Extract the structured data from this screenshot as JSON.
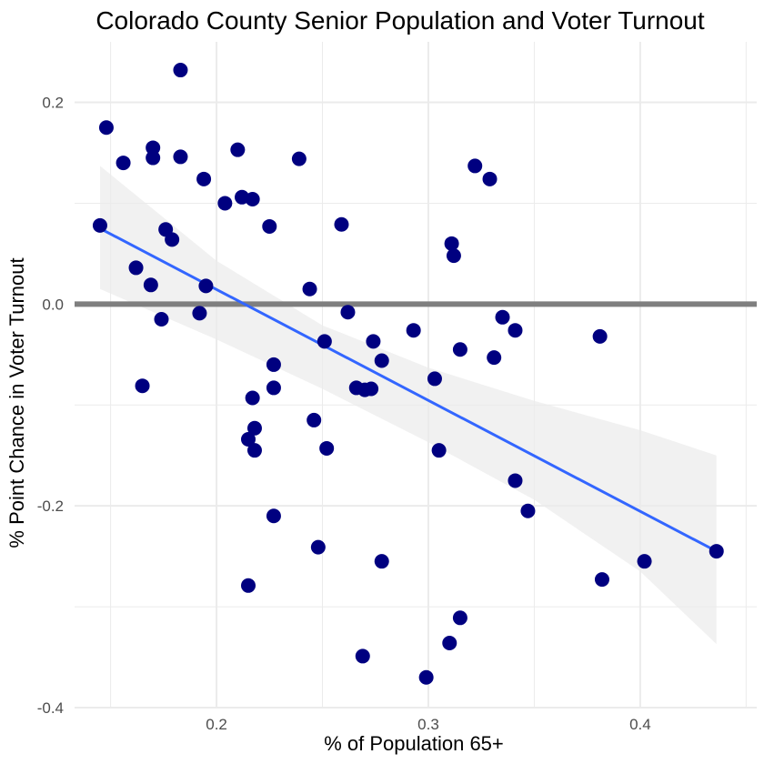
{
  "chart_data": {
    "type": "scatter",
    "title": "Colorado County Senior Population and Voter Turnout",
    "xlabel": "% of Population 65+",
    "ylabel": "% Point Chance in  Voter Turnout",
    "xlim": [
      0.133,
      0.455
    ],
    "ylim": [
      -0.4,
      0.26
    ],
    "x_ticks": [
      0.2,
      0.3,
      0.4
    ],
    "x_tick_labels": [
      "0.2",
      "0.3",
      "0.4"
    ],
    "y_ticks": [
      -0.4,
      -0.2,
      0.0,
      0.2
    ],
    "y_tick_labels": [
      "-0.4",
      "-0.2",
      "0.0",
      "0.2"
    ],
    "grid": true,
    "reference_line_y": 0.0,
    "colors": {
      "points": "#000080",
      "fit_line": "#3366ff",
      "confidence_band": "#ebebeb",
      "reference_line": "#7f7f7f",
      "grid": "#ebebeb"
    },
    "points": [
      {
        "x": 0.183,
        "y": 0.232
      },
      {
        "x": 0.148,
        "y": 0.175
      },
      {
        "x": 0.156,
        "y": 0.14
      },
      {
        "x": 0.17,
        "y": 0.155
      },
      {
        "x": 0.17,
        "y": 0.145
      },
      {
        "x": 0.183,
        "y": 0.146
      },
      {
        "x": 0.21,
        "y": 0.153
      },
      {
        "x": 0.194,
        "y": 0.124
      },
      {
        "x": 0.239,
        "y": 0.144
      },
      {
        "x": 0.204,
        "y": 0.1
      },
      {
        "x": 0.212,
        "y": 0.106
      },
      {
        "x": 0.217,
        "y": 0.104
      },
      {
        "x": 0.145,
        "y": 0.078
      },
      {
        "x": 0.176,
        "y": 0.074
      },
      {
        "x": 0.179,
        "y": 0.064
      },
      {
        "x": 0.225,
        "y": 0.077
      },
      {
        "x": 0.259,
        "y": 0.079
      },
      {
        "x": 0.162,
        "y": 0.036
      },
      {
        "x": 0.169,
        "y": 0.019
      },
      {
        "x": 0.195,
        "y": 0.018
      },
      {
        "x": 0.244,
        "y": 0.015
      },
      {
        "x": 0.174,
        "y": -0.015
      },
      {
        "x": 0.192,
        "y": -0.009
      },
      {
        "x": 0.262,
        "y": -0.008
      },
      {
        "x": 0.251,
        "y": -0.037
      },
      {
        "x": 0.274,
        "y": -0.037
      },
      {
        "x": 0.278,
        "y": -0.056
      },
      {
        "x": 0.227,
        "y": -0.06
      },
      {
        "x": 0.165,
        "y": -0.081
      },
      {
        "x": 0.217,
        "y": -0.093
      },
      {
        "x": 0.227,
        "y": -0.083
      },
      {
        "x": 0.266,
        "y": -0.083
      },
      {
        "x": 0.27,
        "y": -0.085
      },
      {
        "x": 0.273,
        "y": -0.084
      },
      {
        "x": 0.246,
        "y": -0.115
      },
      {
        "x": 0.215,
        "y": -0.134
      },
      {
        "x": 0.218,
        "y": -0.123
      },
      {
        "x": 0.218,
        "y": -0.145
      },
      {
        "x": 0.252,
        "y": -0.143
      },
      {
        "x": 0.227,
        "y": -0.21
      },
      {
        "x": 0.248,
        "y": -0.241
      },
      {
        "x": 0.215,
        "y": -0.279
      },
      {
        "x": 0.278,
        "y": -0.255
      },
      {
        "x": 0.269,
        "y": -0.349
      },
      {
        "x": 0.299,
        "y": -0.37
      },
      {
        "x": 0.31,
        "y": -0.336
      },
      {
        "x": 0.315,
        "y": -0.311
      },
      {
        "x": 0.311,
        "y": 0.06
      },
      {
        "x": 0.312,
        "y": 0.048
      },
      {
        "x": 0.322,
        "y": 0.137
      },
      {
        "x": 0.329,
        "y": 0.124
      },
      {
        "x": 0.293,
        "y": -0.026
      },
      {
        "x": 0.315,
        "y": -0.045
      },
      {
        "x": 0.303,
        "y": -0.074
      },
      {
        "x": 0.305,
        "y": -0.145
      },
      {
        "x": 0.335,
        "y": -0.013
      },
      {
        "x": 0.341,
        "y": -0.026
      },
      {
        "x": 0.331,
        "y": -0.053
      },
      {
        "x": 0.341,
        "y": -0.175
      },
      {
        "x": 0.347,
        "y": -0.205
      },
      {
        "x": 0.381,
        "y": -0.032
      },
      {
        "x": 0.382,
        "y": -0.273
      },
      {
        "x": 0.402,
        "y": -0.255
      },
      {
        "x": 0.436,
        "y": -0.245
      }
    ],
    "fit_line": [
      {
        "x": 0.145,
        "y": 0.075
      },
      {
        "x": 0.436,
        "y": -0.245
      }
    ],
    "confidence_band": {
      "x": [
        0.145,
        0.2,
        0.25,
        0.3,
        0.35,
        0.4,
        0.436
      ],
      "upper": [
        0.137,
        0.043,
        -0.021,
        -0.063,
        -0.096,
        -0.125,
        -0.15
      ],
      "lower": [
        0.015,
        -0.035,
        -0.084,
        -0.137,
        -0.194,
        -0.265,
        -0.337
      ]
    }
  }
}
